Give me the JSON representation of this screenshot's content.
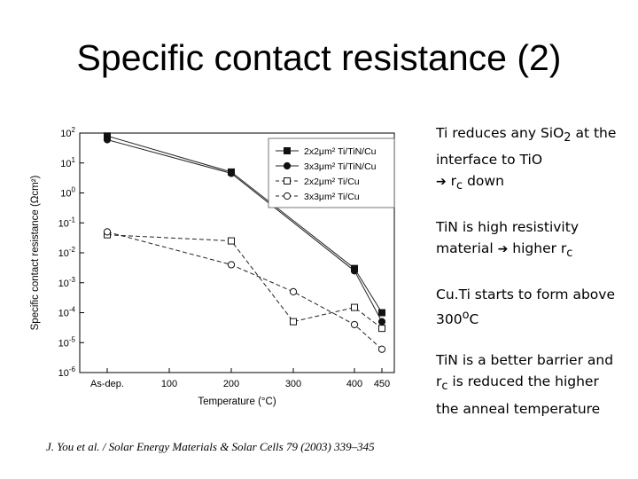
{
  "slide": {
    "title": "Specific contact resistance (2)",
    "citation": "J. You et al. / Solar Energy Materials & Solar Cells 79 (2003) 339–345"
  },
  "notes": [
    {
      "pre": "Ti reduces any SiO",
      "sub": "2",
      "post": " at the interface to TiO",
      "arrow": "➔",
      "sub_lead": "r",
      "sub2": "c",
      "tail": " down"
    },
    {
      "pre": "TiN is high resistivity material ",
      "arrow": "➔",
      "tail": " higher r",
      "sub": "c"
    },
    {
      "pre": "Cu.Ti starts to form above 300",
      "sup": "o",
      "tail": "C"
    },
    {
      "pre": "TiN is a better barrier and r",
      "sub": "c",
      "tail": " is reduced the higher the anneal temperature"
    }
  ],
  "chart_data": {
    "type": "line",
    "xlabel": "Temperature (°C)",
    "ylabel": "Specific contact resistance (Ωcm²)",
    "x_ticks": [
      "As-dep.",
      "100",
      "200",
      "300",
      "400",
      "450"
    ],
    "y_tick_exponents": [
      2,
      1,
      0,
      -1,
      -2,
      -3,
      -4,
      -5,
      -6
    ],
    "y_log_range": [
      -6,
      2
    ],
    "series": [
      {
        "name": "2x2μm² Ti/TiN/Cu",
        "marker": "filled-square",
        "dash": "solid",
        "x": [
          "As-dep.",
          "200",
          "400",
          "450"
        ],
        "y": [
          80,
          5,
          0.003,
          0.0001
        ]
      },
      {
        "name": "3x3μm² Ti/TiN/Cu",
        "marker": "filled-circle",
        "dash": "solid",
        "x": [
          "As-dep.",
          "200",
          "400",
          "450"
        ],
        "y": [
          60,
          4.5,
          0.0025,
          5e-05
        ]
      },
      {
        "name": "2x2μm² Ti/Cu",
        "marker": "open-square",
        "dash": "dashed",
        "x": [
          "As-dep.",
          "200",
          "300",
          "400",
          "450"
        ],
        "y": [
          0.04,
          0.025,
          5e-05,
          0.00015,
          3e-05
        ]
      },
      {
        "name": "3x3μm² Ti/Cu",
        "marker": "open-circle",
        "dash": "dashed",
        "x": [
          "As-dep.",
          "200",
          "300",
          "400",
          "450"
        ],
        "y": [
          0.05,
          0.004,
          0.0005,
          4e-05,
          6e-06
        ]
      }
    ],
    "legend_position": "top-right"
  }
}
